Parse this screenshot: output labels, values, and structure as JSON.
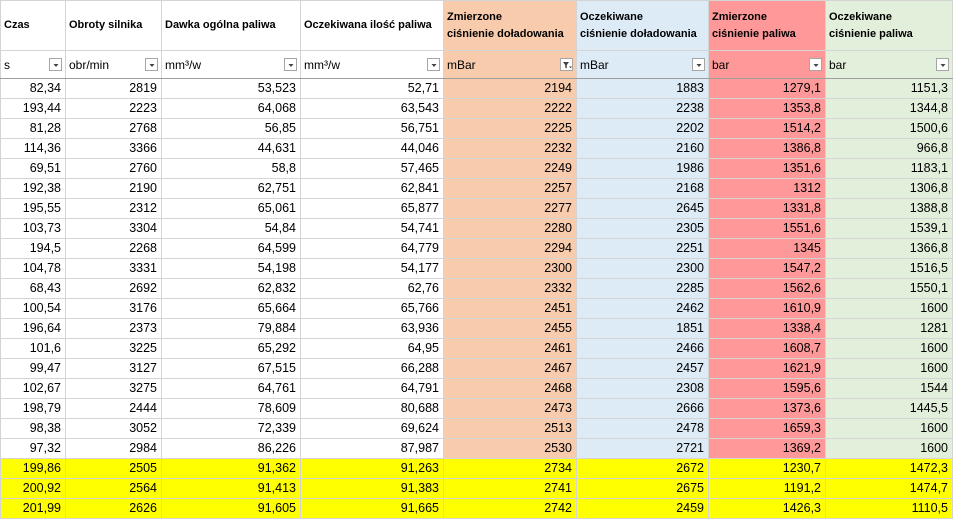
{
  "header": {
    "columns": [
      {
        "title": "Czas",
        "unit": "s"
      },
      {
        "title": "Obroty silnika",
        "unit": "obr/min"
      },
      {
        "title": "Dawka ogólna paliwa",
        "unit": "mm³/w"
      },
      {
        "title": "Oczekiwana ilość paliwa",
        "unit": "mm³/w"
      },
      {
        "title": "Zmierzone\nciśnienie doładowania",
        "unit": "mBar"
      },
      {
        "title": "Oczekiwane\nciśnienie doładowania",
        "unit": "mBar"
      },
      {
        "title": "Zmierzone\nciśnienie paliwa",
        "unit": "bar"
      },
      {
        "title": "Oczekiwane\nciśnienie paliwa",
        "unit": "bar"
      }
    ]
  },
  "table": {
    "rows": [
      [
        "82,34",
        "2819",
        "53,523",
        "52,71",
        "2194",
        "1883",
        "1279,1",
        "1151,3"
      ],
      [
        "193,44",
        "2223",
        "64,068",
        "63,543",
        "2222",
        "2238",
        "1353,8",
        "1344,8"
      ],
      [
        "81,28",
        "2768",
        "56,85",
        "56,751",
        "2225",
        "2202",
        "1514,2",
        "1500,6"
      ],
      [
        "114,36",
        "3366",
        "44,631",
        "44,046",
        "2232",
        "2160",
        "1386,8",
        "966,8"
      ],
      [
        "69,51",
        "2760",
        "58,8",
        "57,465",
        "2249",
        "1986",
        "1351,6",
        "1183,1"
      ],
      [
        "192,38",
        "2190",
        "62,751",
        "62,841",
        "2257",
        "2168",
        "1312",
        "1306,8"
      ],
      [
        "195,55",
        "2312",
        "65,061",
        "65,877",
        "2277",
        "2645",
        "1331,8",
        "1388,8"
      ],
      [
        "103,73",
        "3304",
        "54,84",
        "54,741",
        "2280",
        "2305",
        "1551,6",
        "1539,1"
      ],
      [
        "194,5",
        "2268",
        "64,599",
        "64,779",
        "2294",
        "2251",
        "1345",
        "1366,8"
      ],
      [
        "104,78",
        "3331",
        "54,198",
        "54,177",
        "2300",
        "2300",
        "1547,2",
        "1516,5"
      ],
      [
        "68,43",
        "2692",
        "62,832",
        "62,76",
        "2332",
        "2285",
        "1562,6",
        "1550,1"
      ],
      [
        "100,54",
        "3176",
        "65,664",
        "65,766",
        "2451",
        "2462",
        "1610,9",
        "1600"
      ],
      [
        "196,64",
        "2373",
        "79,884",
        "63,936",
        "2455",
        "1851",
        "1338,4",
        "1281"
      ],
      [
        "101,6",
        "3225",
        "65,292",
        "64,95",
        "2461",
        "2466",
        "1608,7",
        "1600"
      ],
      [
        "99,47",
        "3127",
        "67,515",
        "66,288",
        "2467",
        "2457",
        "1621,9",
        "1600"
      ],
      [
        "102,67",
        "3275",
        "64,761",
        "64,791",
        "2468",
        "2308",
        "1595,6",
        "1544"
      ],
      [
        "198,79",
        "2444",
        "78,609",
        "80,688",
        "2473",
        "2666",
        "1373,6",
        "1445,5"
      ],
      [
        "98,38",
        "3052",
        "72,339",
        "69,624",
        "2513",
        "2478",
        "1659,3",
        "1600"
      ],
      [
        "97,32",
        "2984",
        "86,226",
        "87,987",
        "2530",
        "2721",
        "1369,2",
        "1600"
      ],
      [
        "199,86",
        "2505",
        "91,362",
        "91,263",
        "2734",
        "2672",
        "1230,7",
        "1472,3"
      ],
      [
        "200,92",
        "2564",
        "91,413",
        "91,383",
        "2741",
        "2675",
        "1191,2",
        "1474,7"
      ],
      [
        "201,99",
        "2626",
        "91,605",
        "91,665",
        "2742",
        "2459",
        "1426,3",
        "1110,5"
      ]
    ]
  }
}
